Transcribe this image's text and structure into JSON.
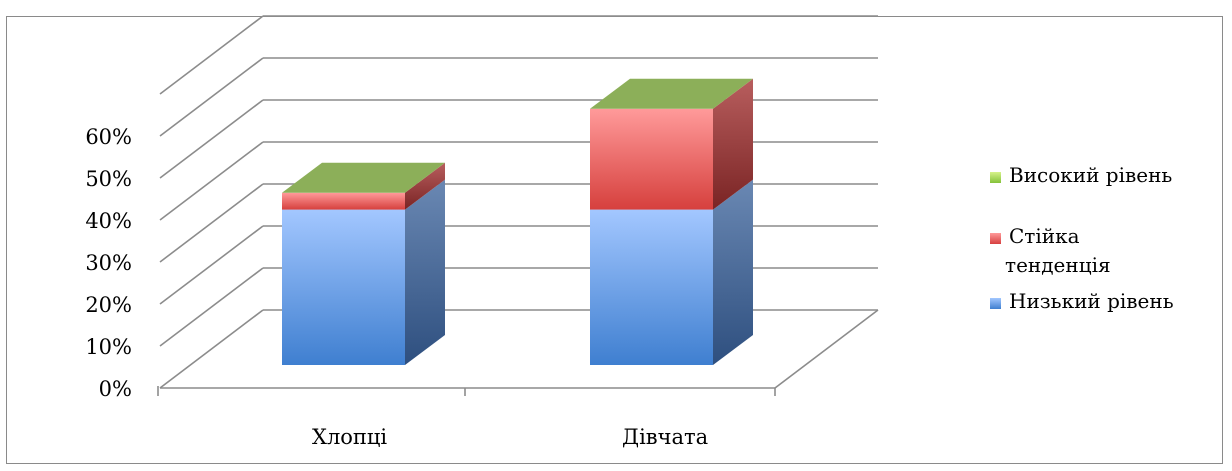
{
  "chart_data": {
    "type": "bar",
    "stacked": true,
    "three_d": true,
    "categories": [
      "Хлопці",
      "Дівчата"
    ],
    "series": [
      {
        "name": "Низький рівень",
        "values": [
          37,
          37
        ],
        "color": "#4f81bd"
      },
      {
        "name": "Стійка тенденція",
        "values": [
          4,
          24
        ],
        "color": "#e05a5a"
      },
      {
        "name": "Високий рівень",
        "values": [
          0,
          0
        ],
        "color": "#8db05a"
      }
    ],
    "ylim": [
      0,
      60
    ],
    "yticks": [
      "0%",
      "10%",
      "20%",
      "30%",
      "40%",
      "50%",
      "60%"
    ],
    "grid": true,
    "legend_position": "right",
    "legend": [
      "Високий рівень",
      "Стійка тенденція",
      "Низький рівень"
    ]
  }
}
